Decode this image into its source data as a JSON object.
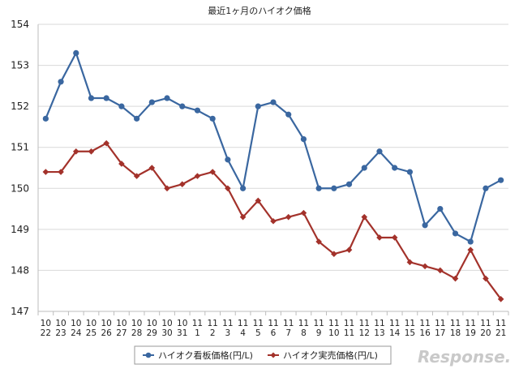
{
  "chart_data": {
    "type": "line",
    "title": "最近1ヶ月のハイオク価格",
    "ylim": [
      147,
      154
    ],
    "yticks": [
      147,
      148,
      149,
      150,
      151,
      152,
      153,
      154
    ],
    "grid": true,
    "legend_position": "bottom",
    "x_months": [
      "10",
      "10",
      "10",
      "10",
      "10",
      "10",
      "10",
      "10",
      "10",
      "10",
      "11",
      "11",
      "11",
      "11",
      "11",
      "11",
      "11",
      "11",
      "11",
      "11",
      "11",
      "11",
      "11",
      "11",
      "11",
      "11",
      "11",
      "11",
      "11",
      "11",
      "11"
    ],
    "x_days": [
      "22",
      "23",
      "24",
      "25",
      "26",
      "27",
      "28",
      "29",
      "30",
      "31",
      "1",
      "2",
      "3",
      "4",
      "5",
      "6",
      "7",
      "8",
      "9",
      "10",
      "11",
      "12",
      "13",
      "14",
      "15",
      "16",
      "17",
      "18",
      "19",
      "20",
      "21"
    ],
    "series": [
      {
        "name": "ハイオク看板価格(円/L)",
        "color": "#3a67a0",
        "marker": "circle",
        "values": [
          151.7,
          152.6,
          153.3,
          152.2,
          152.2,
          152.0,
          151.7,
          152.1,
          152.2,
          152.0,
          151.9,
          151.7,
          150.7,
          150.0,
          152.0,
          152.1,
          151.8,
          151.2,
          150.0,
          150.0,
          150.1,
          150.5,
          150.9,
          150.5,
          150.4,
          149.1,
          149.5,
          148.9,
          148.7,
          150.0,
          150.2
        ]
      },
      {
        "name": "ハイオク実売価格(円/L)",
        "color": "#a3322b",
        "marker": "diamond",
        "values": [
          150.4,
          150.4,
          150.9,
          150.9,
          151.1,
          150.6,
          150.3,
          150.5,
          150.0,
          150.1,
          150.3,
          150.4,
          150.0,
          149.3,
          149.7,
          149.2,
          149.3,
          149.4,
          148.7,
          148.4,
          148.5,
          149.3,
          148.8,
          148.8,
          148.2,
          148.1,
          148.0,
          147.8,
          148.5,
          147.8,
          147.3
        ]
      }
    ]
  },
  "watermark": "Response."
}
